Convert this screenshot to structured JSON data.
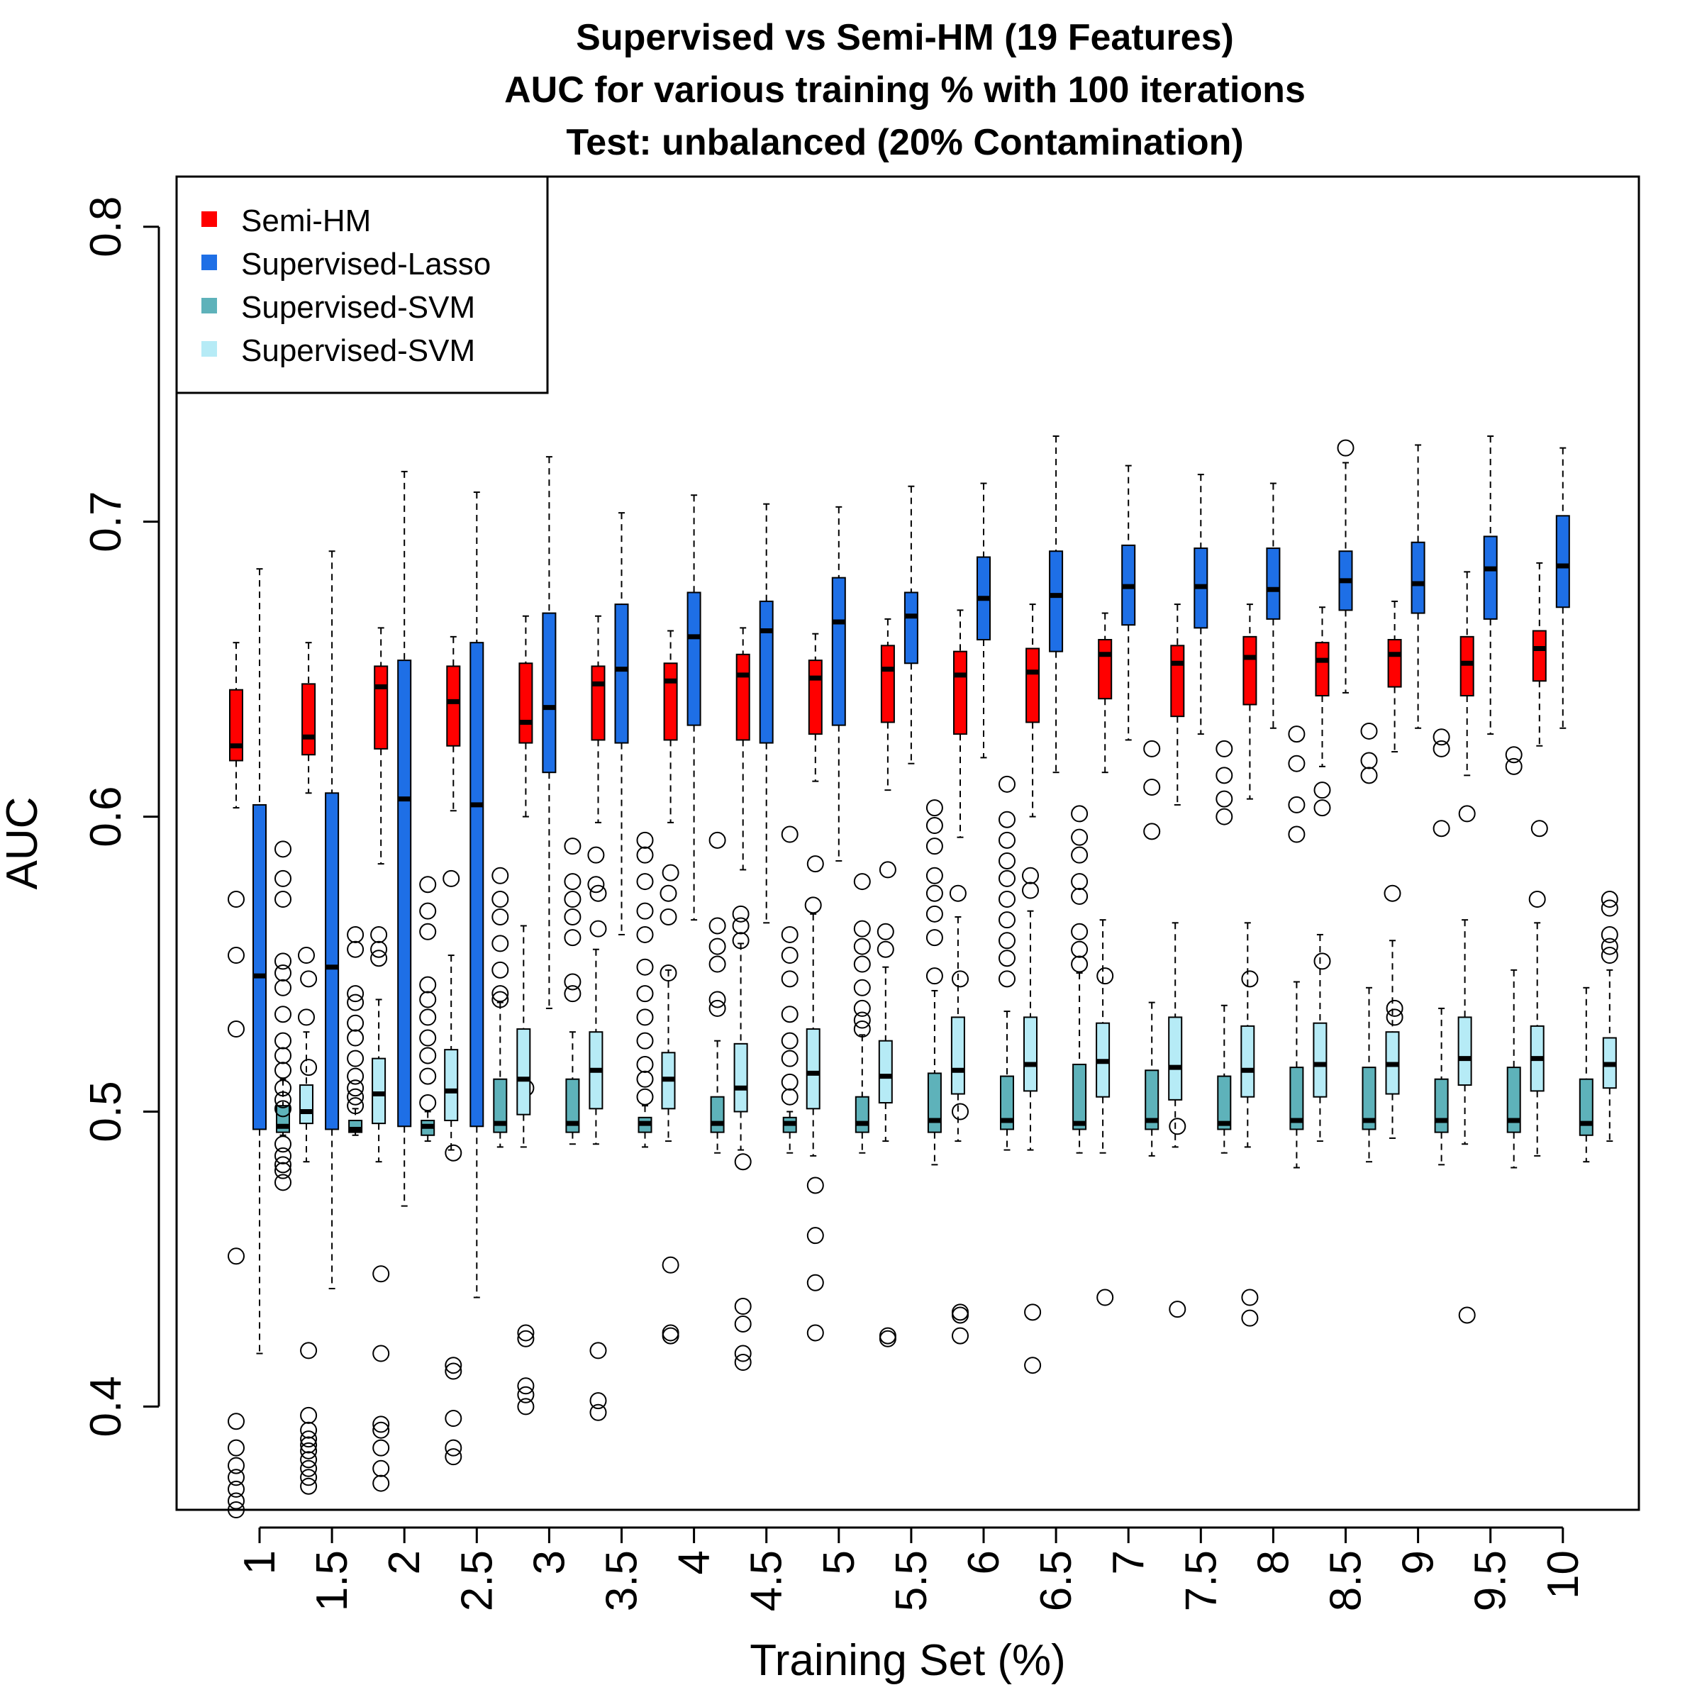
{
  "chart_data": {
    "type": "box",
    "title_lines": [
      "Supervised vs Semi-HM (19 Features)",
      "AUC for various training % with 100 iterations",
      "Test: unbalanced (20% Contamination)"
    ],
    "xlabel": "Training Set (%)",
    "ylabel": "AUC",
    "ylim": [
      0.365,
      0.817
    ],
    "yticks": [
      0.4,
      0.5,
      0.6,
      0.7,
      0.8
    ],
    "ytick_labels": [
      "0.4",
      "0.5",
      "0.6",
      "0.7",
      "0.8"
    ],
    "categories": [
      "1",
      "1.5",
      "2",
      "2.5",
      "3",
      "3.5",
      "4",
      "4.5",
      "5",
      "5.5",
      "6",
      "6.5",
      "7",
      "7.5",
      "8",
      "8.5",
      "9",
      "9.5",
      "10"
    ],
    "grid": false,
    "legend_position": "top-left",
    "series": [
      {
        "name": "Semi-HM",
        "color": "#ff0000",
        "stats": [
          [
            0.603,
            0.619,
            0.624,
            0.643,
            0.659
          ],
          [
            0.608,
            0.621,
            0.627,
            0.645,
            0.659
          ],
          [
            0.584,
            0.623,
            0.644,
            0.651,
            0.664
          ],
          [
            0.602,
            0.624,
            0.639,
            0.651,
            0.661
          ],
          [
            0.6,
            0.625,
            0.632,
            0.652,
            0.668
          ],
          [
            0.598,
            0.626,
            0.645,
            0.651,
            0.668
          ],
          [
            0.598,
            0.626,
            0.646,
            0.652,
            0.663
          ],
          [
            0.582,
            0.626,
            0.648,
            0.655,
            0.664
          ],
          [
            0.612,
            0.628,
            0.647,
            0.653,
            0.662
          ],
          [
            0.609,
            0.632,
            0.65,
            0.658,
            0.667
          ],
          [
            0.593,
            0.628,
            0.648,
            0.656,
            0.67
          ],
          [
            0.6,
            0.632,
            0.649,
            0.657,
            0.672
          ],
          [
            0.615,
            0.64,
            0.655,
            0.66,
            0.669
          ],
          [
            0.604,
            0.634,
            0.652,
            0.658,
            0.672
          ],
          [
            0.606,
            0.638,
            0.654,
            0.661,
            0.672
          ],
          [
            0.617,
            0.641,
            0.653,
            0.659,
            0.671
          ],
          [
            0.622,
            0.644,
            0.655,
            0.66,
            0.673
          ],
          [
            0.614,
            0.641,
            0.652,
            0.661,
            0.683
          ],
          [
            0.624,
            0.646,
            0.657,
            0.663,
            0.686
          ]
        ],
        "outliers": [
          [
            0.572,
            0.553,
            0.528,
            0.451,
            0.395,
            0.386,
            0.38,
            0.376,
            0.372,
            0.368,
            0.365
          ],
          [
            0.545,
            0.515,
            0.419,
            0.397,
            0.392,
            0.389,
            0.387,
            0.385,
            0.382,
            0.379,
            0.376,
            0.373
          ],
          [
            0.445,
            0.418,
            0.394,
            0.392,
            0.386,
            0.379,
            0.374
          ],
          [
            0.486,
            0.414,
            0.412,
            0.396,
            0.386,
            0.383
          ],
          [
            0.508,
            0.425,
            0.423,
            0.407,
            0.404,
            0.4
          ],
          [
            0.574,
            0.562,
            0.419,
            0.402,
            0.398
          ],
          [
            0.581,
            0.448,
            0.425,
            0.424
          ],
          [
            0.483,
            0.434,
            0.428,
            0.418,
            0.415
          ],
          [
            0.584,
            0.475,
            0.458,
            0.442,
            0.425
          ],
          [
            0.582,
            0.424,
            0.423
          ],
          [
            0.545,
            0.5,
            0.432,
            0.431,
            0.424
          ],
          [
            0.432,
            0.414
          ],
          [
            0.546,
            0.437
          ],
          [
            0.495,
            0.433
          ],
          [
            0.545,
            0.437,
            0.43
          ],
          [
            0.609,
            0.603,
            0.551
          ],
          [
            0.532,
            0.535
          ],
          [
            0.601,
            0.431
          ],
          [
            0.596
          ]
        ]
      },
      {
        "name": "Supervised-Lasso",
        "color": "#1e6fe6",
        "stats": [
          [
            0.418,
            0.494,
            0.546,
            0.604,
            0.684
          ],
          [
            0.44,
            0.494,
            0.549,
            0.608,
            0.69
          ],
          [
            0.468,
            0.495,
            0.606,
            0.653,
            0.717
          ],
          [
            0.437,
            0.495,
            0.604,
            0.659,
            0.71
          ],
          [
            0.535,
            0.615,
            0.637,
            0.669,
            0.722
          ],
          [
            0.56,
            0.625,
            0.65,
            0.672,
            0.703
          ],
          [
            0.565,
            0.631,
            0.661,
            0.676,
            0.709
          ],
          [
            0.564,
            0.625,
            0.663,
            0.673,
            0.706
          ],
          [
            0.585,
            0.631,
            0.666,
            0.681,
            0.705
          ],
          [
            0.618,
            0.652,
            0.668,
            0.676,
            0.712
          ],
          [
            0.62,
            0.66,
            0.674,
            0.688,
            0.713
          ],
          [
            0.615,
            0.656,
            0.675,
            0.69,
            0.729
          ],
          [
            0.626,
            0.665,
            0.678,
            0.692,
            0.719
          ],
          [
            0.628,
            0.664,
            0.678,
            0.691,
            0.716
          ],
          [
            0.63,
            0.667,
            0.677,
            0.691,
            0.713
          ],
          [
            0.642,
            0.67,
            0.68,
            0.69,
            0.72
          ],
          [
            0.63,
            0.669,
            0.679,
            0.693,
            0.726
          ],
          [
            0.628,
            0.667,
            0.684,
            0.695,
            0.729
          ],
          [
            0.63,
            0.671,
            0.685,
            0.702,
            0.725
          ]
        ],
        "outliers": [
          [],
          [],
          [],
          [],
          [],
          [],
          [],
          [],
          [],
          [],
          [],
          [],
          [],
          [],
          [],
          [
            0.725
          ],
          [],
          [],
          []
        ]
      },
      {
        "name": "Supervised-SVM",
        "color": "#5eb2ba",
        "stats": [
          [
            0.492,
            0.493,
            0.495,
            0.502,
            0.511
          ],
          [
            0.492,
            0.493,
            0.494,
            0.497,
            0.501
          ],
          [
            0.49,
            0.492,
            0.495,
            0.497,
            0.5
          ],
          [
            0.488,
            0.493,
            0.496,
            0.511,
            0.537
          ],
          [
            0.489,
            0.493,
            0.496,
            0.511,
            0.527
          ],
          [
            0.488,
            0.493,
            0.496,
            0.498,
            0.502
          ],
          [
            0.486,
            0.493,
            0.496,
            0.505,
            0.524
          ],
          [
            0.486,
            0.493,
            0.496,
            0.498,
            0.5
          ],
          [
            0.486,
            0.493,
            0.496,
            0.505,
            0.526
          ],
          [
            0.482,
            0.493,
            0.497,
            0.513,
            0.541
          ],
          [
            0.487,
            0.494,
            0.497,
            0.512,
            0.534
          ],
          [
            0.486,
            0.494,
            0.496,
            0.516,
            0.547
          ],
          [
            0.485,
            0.494,
            0.497,
            0.514,
            0.537
          ],
          [
            0.486,
            0.494,
            0.496,
            0.512,
            0.536
          ],
          [
            0.481,
            0.494,
            0.497,
            0.515,
            0.544
          ],
          [
            0.483,
            0.494,
            0.497,
            0.515,
            0.542
          ],
          [
            0.482,
            0.493,
            0.497,
            0.511,
            0.535
          ],
          [
            0.481,
            0.493,
            0.497,
            0.515,
            0.548
          ],
          [
            0.483,
            0.492,
            0.496,
            0.511,
            0.542
          ]
        ],
        "outliers": [
          [
            0.589,
            0.579,
            0.572,
            0.551,
            0.547,
            0.542,
            0.533,
            0.524,
            0.519,
            0.514,
            0.508,
            0.504,
            0.501,
            0.489,
            0.485,
            0.482,
            0.48,
            0.476
          ],
          [
            0.56,
            0.555,
            0.54,
            0.537,
            0.53,
            0.525,
            0.518,
            0.512,
            0.508,
            0.505,
            0.502
          ],
          [
            0.577,
            0.568,
            0.561,
            0.543,
            0.538,
            0.532,
            0.525,
            0.519,
            0.512,
            0.503
          ],
          [
            0.58,
            0.572,
            0.566,
            0.557,
            0.548,
            0.54,
            0.538
          ],
          [
            0.59,
            0.578,
            0.572,
            0.566,
            0.559,
            0.544,
            0.54
          ],
          [
            0.592,
            0.587,
            0.578,
            0.568,
            0.56,
            0.549,
            0.54,
            0.532,
            0.524,
            0.516,
            0.511,
            0.505
          ],
          [
            0.592,
            0.563,
            0.556,
            0.55,
            0.538,
            0.535
          ],
          [
            0.594,
            0.56,
            0.553,
            0.545,
            0.533,
            0.524,
            0.518,
            0.51,
            0.505
          ],
          [
            0.578,
            0.562,
            0.556,
            0.55,
            0.542,
            0.535,
            0.531,
            0.528
          ],
          [
            0.603,
            0.597,
            0.59,
            0.58,
            0.574,
            0.567,
            0.559,
            0.546
          ],
          [
            0.611,
            0.599,
            0.592,
            0.585,
            0.579,
            0.572,
            0.565,
            0.558,
            0.552,
            0.545
          ],
          [
            0.601,
            0.593,
            0.587,
            0.578,
            0.573,
            0.561,
            0.555,
            0.55
          ],
          [
            0.623,
            0.61,
            0.595
          ],
          [
            0.623,
            0.614,
            0.606,
            0.6
          ],
          [
            0.628,
            0.618,
            0.604,
            0.594
          ],
          [
            0.629,
            0.619,
            0.614
          ],
          [
            0.627,
            0.623,
            0.596
          ],
          [
            0.621,
            0.617
          ],
          []
        ]
      },
      {
        "name": "Supervised-SVM",
        "color": "#b6ebf6",
        "stats": [
          [
            0.483,
            0.496,
            0.5,
            0.509,
            0.527
          ],
          [
            0.483,
            0.496,
            0.506,
            0.518,
            0.538
          ],
          [
            0.487,
            0.497,
            0.507,
            0.521,
            0.553
          ],
          [
            0.488,
            0.499,
            0.511,
            0.528,
            0.563
          ],
          [
            0.489,
            0.501,
            0.514,
            0.527,
            0.555
          ],
          [
            0.49,
            0.501,
            0.511,
            0.52,
            0.548
          ],
          [
            0.487,
            0.5,
            0.508,
            0.523,
            0.557
          ],
          [
            0.485,
            0.501,
            0.513,
            0.528,
            0.567
          ],
          [
            0.49,
            0.503,
            0.512,
            0.524,
            0.549
          ],
          [
            0.49,
            0.506,
            0.514,
            0.532,
            0.566
          ],
          [
            0.487,
            0.507,
            0.516,
            0.532,
            0.568
          ],
          [
            0.486,
            0.505,
            0.517,
            0.53,
            0.565
          ],
          [
            0.488,
            0.504,
            0.515,
            0.532,
            0.564
          ],
          [
            0.488,
            0.505,
            0.514,
            0.529,
            0.564
          ],
          [
            0.49,
            0.505,
            0.516,
            0.53,
            0.56
          ],
          [
            0.491,
            0.506,
            0.516,
            0.527,
            0.558
          ],
          [
            0.489,
            0.509,
            0.518,
            0.532,
            0.565
          ],
          [
            0.485,
            0.507,
            0.518,
            0.529,
            0.564
          ],
          [
            0.49,
            0.508,
            0.516,
            0.525,
            0.548
          ]
        ],
        "outliers": [
          [
            0.553,
            0.532
          ],
          [
            0.56,
            0.555,
            0.552
          ],
          [
            0.579
          ],
          [],
          [
            0.587,
            0.577
          ],
          [
            0.574,
            0.566,
            0.547
          ],
          [
            0.567,
            0.563,
            0.558
          ],
          [
            0.57
          ],
          [
            0.561,
            0.555
          ],
          [
            0.574
          ],
          [
            0.58,
            0.575
          ],
          [],
          [],
          [],
          [],
          [
            0.574
          ],
          [],
          [
            0.572
          ],
          [
            0.572,
            0.569,
            0.56,
            0.556,
            0.553
          ]
        ]
      }
    ]
  }
}
